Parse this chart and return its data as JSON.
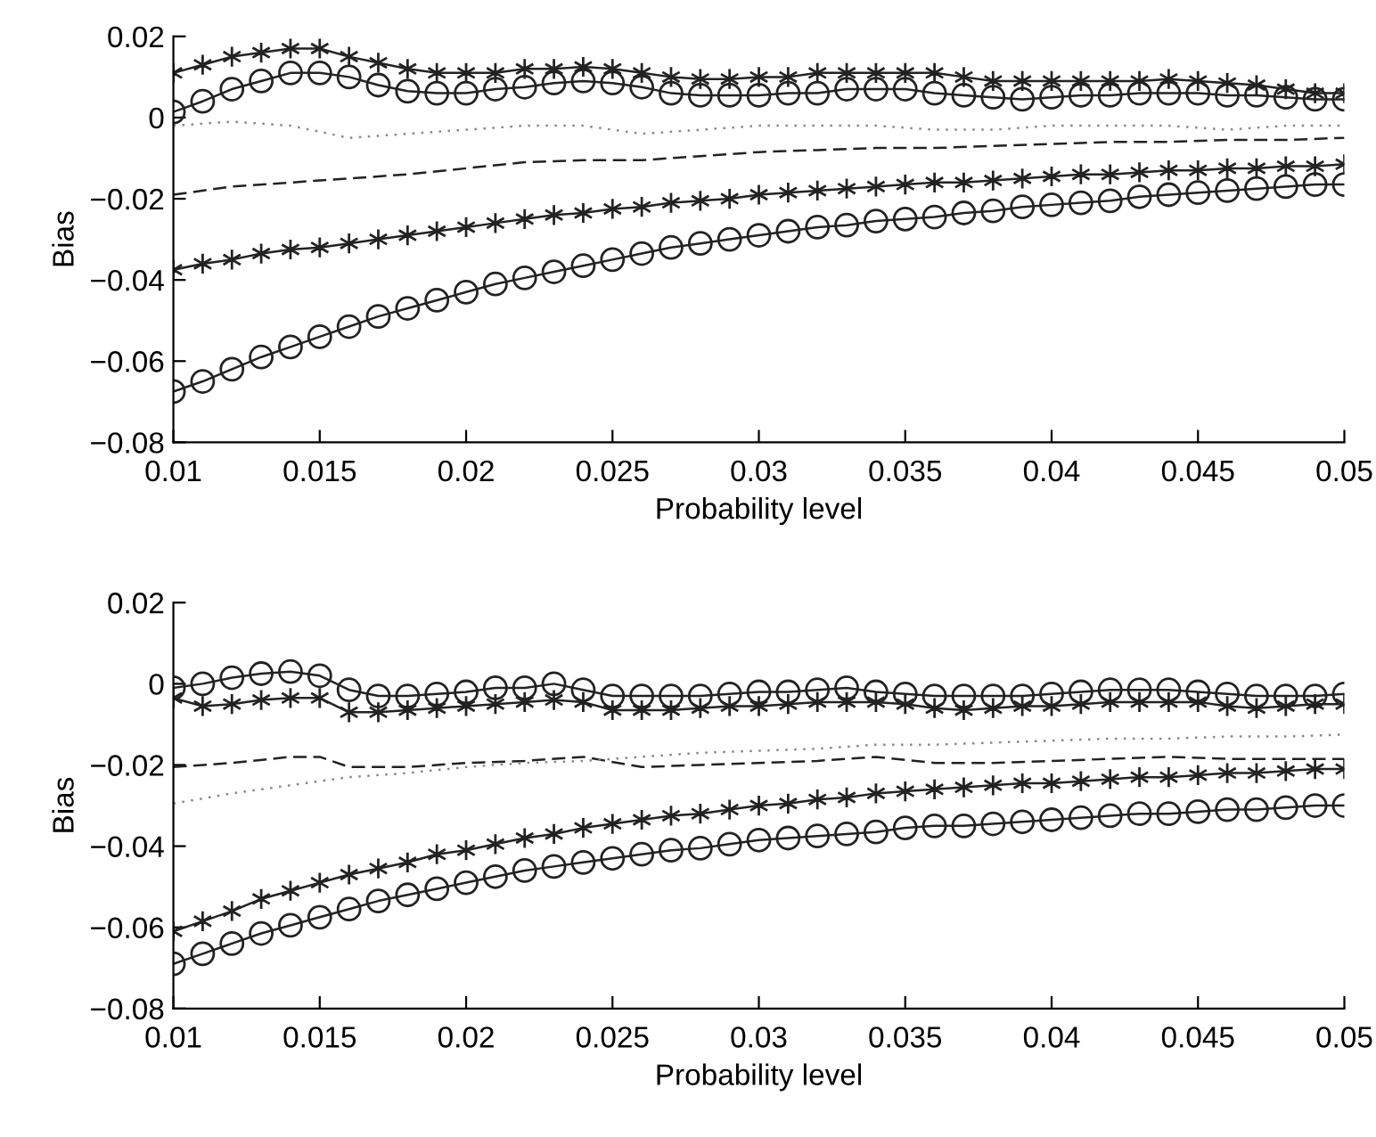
{
  "chart_data": [
    {
      "type": "line",
      "xlabel": "Probability level",
      "ylabel": "Bias",
      "x": [
        0.01,
        0.011,
        0.012,
        0.013,
        0.014,
        0.015,
        0.016,
        0.017,
        0.018,
        0.019,
        0.02,
        0.021,
        0.022,
        0.023,
        0.024,
        0.025,
        0.026,
        0.027,
        0.028,
        0.029,
        0.03,
        0.031,
        0.032,
        0.033,
        0.034,
        0.035,
        0.036,
        0.037,
        0.038,
        0.039,
        0.04,
        0.041,
        0.042,
        0.043,
        0.044,
        0.045,
        0.046,
        0.047,
        0.048,
        0.049,
        0.05
      ],
      "xlim": [
        0.01,
        0.05
      ],
      "xticks": [
        0.01,
        0.015,
        0.02,
        0.025,
        0.03,
        0.035,
        0.04,
        0.045,
        0.05
      ],
      "ylim": [
        -0.08,
        0.02
      ],
      "yticks": [
        {
          "value": -0.08,
          "label": "−0.08"
        },
        {
          "value": -0.06,
          "label": "−0.06"
        },
        {
          "value": -0.04,
          "label": "−0.04"
        },
        {
          "value": -0.02,
          "label": "−0.02"
        },
        {
          "value": 0,
          "label": "0"
        },
        {
          "value": 0.02,
          "label": "0.02"
        }
      ],
      "grid": false,
      "legend": false,
      "series": [
        {
          "color": "#222222",
          "marker": "circle",
          "line_style": "solid",
          "values": [
            0.0014,
            0.004,
            0.007,
            0.009,
            0.011,
            0.011,
            0.01,
            0.008,
            0.0065,
            0.006,
            0.006,
            0.007,
            0.0075,
            0.0085,
            0.009,
            0.0085,
            0.0075,
            0.006,
            0.0055,
            0.0055,
            0.0055,
            0.006,
            0.006,
            0.007,
            0.007,
            0.007,
            0.006,
            0.0055,
            0.005,
            0.0045,
            0.005,
            0.0055,
            0.0055,
            0.006,
            0.006,
            0.006,
            0.0055,
            0.0055,
            0.005,
            0.0045,
            0.0045
          ]
        },
        {
          "color": "#222222",
          "marker": "cross",
          "line_style": "solid",
          "values": [
            0.011,
            0.013,
            0.015,
            0.016,
            0.017,
            0.017,
            0.015,
            0.0135,
            0.012,
            0.011,
            0.011,
            0.011,
            0.012,
            0.012,
            0.0125,
            0.012,
            0.011,
            0.01,
            0.0095,
            0.0095,
            0.01,
            0.01,
            0.011,
            0.011,
            0.011,
            0.011,
            0.011,
            0.01,
            0.009,
            0.009,
            0.009,
            0.009,
            0.009,
            0.009,
            0.0095,
            0.009,
            0.0085,
            0.008,
            0.007,
            0.006,
            0.006
          ]
        },
        {
          "color": "#888888",
          "marker": "none",
          "line_style": "dotted",
          "x": [
            0.01,
            0.012,
            0.014,
            0.016,
            0.018,
            0.02,
            0.022,
            0.024,
            0.026,
            0.028,
            0.03,
            0.032,
            0.034,
            0.036,
            0.038,
            0.04,
            0.042,
            0.044,
            0.046,
            0.048,
            0.05
          ],
          "values": [
            -0.002,
            -0.001,
            -0.002,
            -0.005,
            -0.004,
            -0.003,
            -0.002,
            -0.002,
            -0.004,
            -0.003,
            -0.002,
            -0.002,
            -0.002,
            -0.003,
            -0.003,
            -0.002,
            -0.002,
            -0.002,
            -0.003,
            -0.002,
            -0.002
          ]
        },
        {
          "color": "#222222",
          "marker": "none",
          "line_style": "dashed",
          "x": [
            0.01,
            0.012,
            0.014,
            0.016,
            0.018,
            0.02,
            0.022,
            0.024,
            0.026,
            0.028,
            0.03,
            0.032,
            0.034,
            0.036,
            0.038,
            0.04,
            0.042,
            0.044,
            0.046,
            0.048,
            0.05
          ],
          "values": [
            -0.019,
            -0.017,
            -0.016,
            -0.015,
            -0.014,
            -0.0125,
            -0.011,
            -0.0105,
            -0.0105,
            -0.0095,
            -0.0085,
            -0.008,
            -0.0075,
            -0.0075,
            -0.007,
            -0.0065,
            -0.006,
            -0.006,
            -0.0055,
            -0.0055,
            -0.005
          ]
        },
        {
          "color": "#222222",
          "marker": "cross",
          "line_style": "solid",
          "values": [
            -0.0375,
            -0.036,
            -0.035,
            -0.0335,
            -0.0325,
            -0.032,
            -0.031,
            -0.03,
            -0.029,
            -0.028,
            -0.027,
            -0.026,
            -0.025,
            -0.024,
            -0.0235,
            -0.0225,
            -0.022,
            -0.021,
            -0.0205,
            -0.02,
            -0.019,
            -0.0185,
            -0.018,
            -0.0175,
            -0.017,
            -0.0165,
            -0.016,
            -0.016,
            -0.0155,
            -0.015,
            -0.0145,
            -0.014,
            -0.014,
            -0.0135,
            -0.013,
            -0.013,
            -0.0125,
            -0.0125,
            -0.012,
            -0.012,
            -0.0115
          ]
        },
        {
          "color": "#222222",
          "marker": "circle",
          "line_style": "solid",
          "values": [
            -0.0675,
            -0.065,
            -0.062,
            -0.059,
            -0.0565,
            -0.054,
            -0.0515,
            -0.049,
            -0.047,
            -0.045,
            -0.043,
            -0.041,
            -0.0395,
            -0.038,
            -0.0365,
            -0.035,
            -0.0335,
            -0.032,
            -0.031,
            -0.03,
            -0.029,
            -0.028,
            -0.027,
            -0.0265,
            -0.0255,
            -0.025,
            -0.0245,
            -0.0235,
            -0.023,
            -0.022,
            -0.0215,
            -0.021,
            -0.0205,
            -0.0195,
            -0.019,
            -0.0185,
            -0.018,
            -0.0175,
            -0.017,
            -0.0165,
            -0.0165
          ]
        }
      ]
    },
    {
      "type": "line",
      "xlabel": "Probability level",
      "ylabel": "Bias",
      "x": [
        0.01,
        0.011,
        0.012,
        0.013,
        0.014,
        0.015,
        0.016,
        0.017,
        0.018,
        0.019,
        0.02,
        0.021,
        0.022,
        0.023,
        0.024,
        0.025,
        0.026,
        0.027,
        0.028,
        0.029,
        0.03,
        0.031,
        0.032,
        0.033,
        0.034,
        0.035,
        0.036,
        0.037,
        0.038,
        0.039,
        0.04,
        0.041,
        0.042,
        0.043,
        0.044,
        0.045,
        0.046,
        0.047,
        0.048,
        0.049,
        0.05
      ],
      "xlim": [
        0.01,
        0.05
      ],
      "xticks": [
        0.01,
        0.015,
        0.02,
        0.025,
        0.03,
        0.035,
        0.04,
        0.045,
        0.05
      ],
      "ylim": [
        -0.08,
        0.02
      ],
      "yticks": [
        {
          "value": -0.08,
          "label": "−0.08"
        },
        {
          "value": -0.06,
          "label": "−0.06"
        },
        {
          "value": -0.04,
          "label": "−0.04"
        },
        {
          "value": -0.02,
          "label": "−0.02"
        },
        {
          "value": 0,
          "label": "0"
        },
        {
          "value": 0.02,
          "label": "0.02"
        }
      ],
      "grid": false,
      "legend": false,
      "series": [
        {
          "color": "#222222",
          "marker": "circle",
          "line_style": "solid",
          "values": [
            -0.001,
            0,
            0.0015,
            0.0025,
            0.003,
            0.002,
            -0.0015,
            -0.003,
            -0.003,
            -0.0025,
            -0.002,
            -0.001,
            -0.001,
            0,
            -0.0015,
            -0.003,
            -0.003,
            -0.003,
            -0.003,
            -0.0025,
            -0.002,
            -0.002,
            -0.0015,
            -0.001,
            -0.002,
            -0.0025,
            -0.003,
            -0.003,
            -0.003,
            -0.003,
            -0.0025,
            -0.002,
            -0.0015,
            -0.0015,
            -0.0015,
            -0.002,
            -0.0025,
            -0.003,
            -0.003,
            -0.003,
            -0.0025
          ]
        },
        {
          "color": "#222222",
          "marker": "cross",
          "line_style": "solid",
          "values": [
            -0.0035,
            -0.0055,
            -0.005,
            -0.004,
            -0.0035,
            -0.0035,
            -0.007,
            -0.007,
            -0.0065,
            -0.006,
            -0.0055,
            -0.005,
            -0.0045,
            -0.004,
            -0.0045,
            -0.0065,
            -0.0065,
            -0.0065,
            -0.006,
            -0.0055,
            -0.0055,
            -0.005,
            -0.0045,
            -0.0045,
            -0.0045,
            -0.005,
            -0.006,
            -0.0065,
            -0.006,
            -0.0055,
            -0.0055,
            -0.005,
            -0.0045,
            -0.0045,
            -0.0045,
            -0.0045,
            -0.0055,
            -0.006,
            -0.0055,
            -0.005,
            -0.005
          ]
        },
        {
          "color": "#222222",
          "marker": "none",
          "line_style": "dashed",
          "x": [
            0.01,
            0.012,
            0.014,
            0.015,
            0.016,
            0.018,
            0.02,
            0.022,
            0.024,
            0.026,
            0.028,
            0.03,
            0.032,
            0.034,
            0.036,
            0.038,
            0.04,
            0.042,
            0.044,
            0.046,
            0.048,
            0.05
          ],
          "values": [
            -0.0205,
            -0.0195,
            -0.018,
            -0.018,
            -0.0205,
            -0.0205,
            -0.0195,
            -0.019,
            -0.018,
            -0.0205,
            -0.02,
            -0.0195,
            -0.019,
            -0.018,
            -0.0195,
            -0.0195,
            -0.019,
            -0.0185,
            -0.018,
            -0.0185,
            -0.0185,
            -0.0185
          ]
        },
        {
          "color": "#888888",
          "marker": "none",
          "line_style": "dotted",
          "x": [
            0.01,
            0.012,
            0.014,
            0.016,
            0.018,
            0.02,
            0.022,
            0.024,
            0.026,
            0.028,
            0.03,
            0.032,
            0.034,
            0.036,
            0.038,
            0.04,
            0.042,
            0.044,
            0.046,
            0.048,
            0.05
          ],
          "values": [
            -0.0295,
            -0.027,
            -0.025,
            -0.023,
            -0.022,
            -0.0205,
            -0.0195,
            -0.019,
            -0.018,
            -0.017,
            -0.0165,
            -0.016,
            -0.015,
            -0.015,
            -0.0145,
            -0.014,
            -0.0135,
            -0.0135,
            -0.013,
            -0.013,
            -0.0125
          ]
        },
        {
          "color": "#222222",
          "marker": "cross",
          "line_style": "solid",
          "values": [
            -0.061,
            -0.0585,
            -0.056,
            -0.053,
            -0.051,
            -0.049,
            -0.047,
            -0.0455,
            -0.044,
            -0.042,
            -0.041,
            -0.0395,
            -0.038,
            -0.037,
            -0.0355,
            -0.0345,
            -0.0335,
            -0.0325,
            -0.032,
            -0.031,
            -0.03,
            -0.0295,
            -0.0285,
            -0.028,
            -0.027,
            -0.0265,
            -0.026,
            -0.0255,
            -0.025,
            -0.0245,
            -0.0245,
            -0.024,
            -0.0235,
            -0.023,
            -0.023,
            -0.0225,
            -0.022,
            -0.022,
            -0.0215,
            -0.021,
            -0.021
          ]
        },
        {
          "color": "#222222",
          "marker": "circle",
          "line_style": "solid",
          "values": [
            -0.069,
            -0.0665,
            -0.064,
            -0.0615,
            -0.0595,
            -0.0575,
            -0.0555,
            -0.0535,
            -0.052,
            -0.0505,
            -0.049,
            -0.0475,
            -0.046,
            -0.045,
            -0.044,
            -0.043,
            -0.042,
            -0.041,
            -0.0405,
            -0.0395,
            -0.0385,
            -0.038,
            -0.0375,
            -0.037,
            -0.0365,
            -0.0355,
            -0.035,
            -0.035,
            -0.0345,
            -0.034,
            -0.0335,
            -0.033,
            -0.0325,
            -0.032,
            -0.032,
            -0.0315,
            -0.031,
            -0.031,
            -0.0305,
            -0.03,
            -0.03
          ]
        }
      ]
    }
  ]
}
